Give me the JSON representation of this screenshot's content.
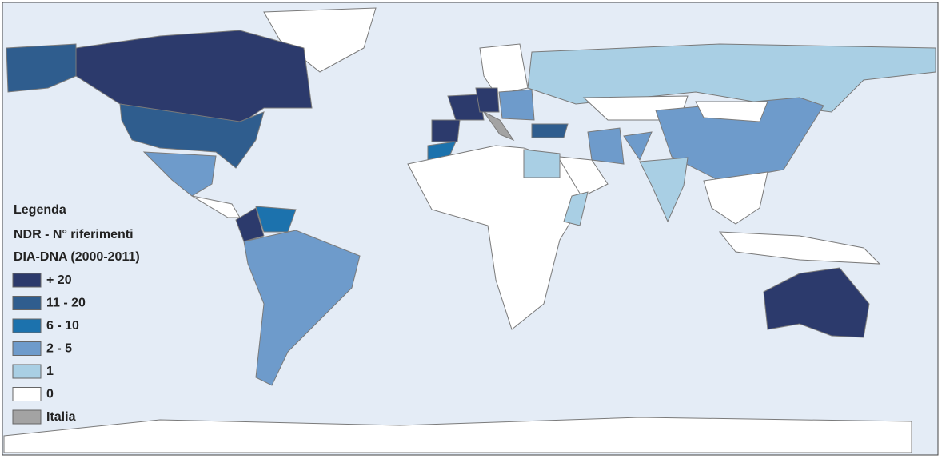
{
  "legend": {
    "title": "Legenda",
    "subtitle_lines": [
      "NDR - N° riferimenti",
      "DIA-DNA (2000-2011)"
    ],
    "items": [
      {
        "label": "+ 20",
        "color": "#2c3a6c"
      },
      {
        "label": "11 - 20",
        "color": "#2f5d8e"
      },
      {
        "label": "6 - 10",
        "color": "#1c72ad"
      },
      {
        "label": "2 - 5",
        "color": "#6e9bcb"
      },
      {
        "label": "1",
        "color": "#a9cfe4"
      },
      {
        "label": "0",
        "color": "#ffffff"
      },
      {
        "label": "Italia",
        "color": "#a3a3a3"
      }
    ]
  }
}
